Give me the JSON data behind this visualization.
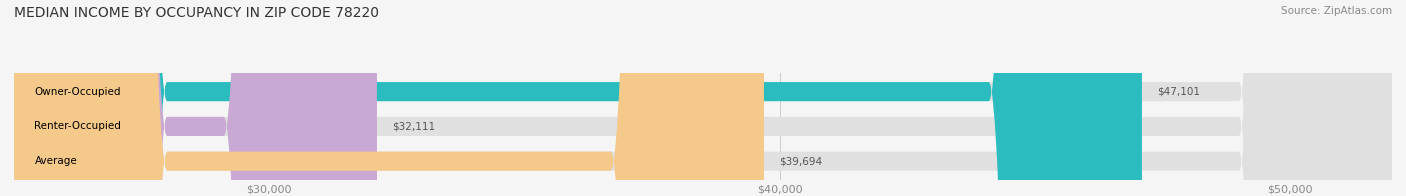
{
  "title": "MEDIAN INCOME BY OCCUPANCY IN ZIP CODE 78220",
  "source": "Source: ZipAtlas.com",
  "categories": [
    "Owner-Occupied",
    "Renter-Occupied",
    "Average"
  ],
  "values": [
    47101,
    32111,
    39694
  ],
  "labels": [
    "$47,101",
    "$32,111",
    "$39,694"
  ],
  "bar_colors": [
    "#2abcbf",
    "#c9a8d4",
    "#f5c98a"
  ],
  "xlim": [
    25000,
    52000
  ],
  "xticks": [
    30000,
    40000,
    50000
  ],
  "xticklabels": [
    "$30,000",
    "$40,000",
    "$50,000"
  ],
  "title_fontsize": 10,
  "source_fontsize": 7.5,
  "label_fontsize": 7.5,
  "category_fontsize": 7.5,
  "bar_height": 0.55
}
